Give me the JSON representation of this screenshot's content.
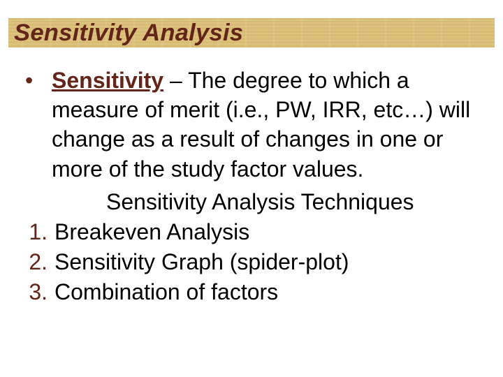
{
  "slide": {
    "title": "Sensitivity Analysis",
    "title_style": {
      "bar_background": "#d8bc74",
      "bar_texture_line_color": "#e8d6a2",
      "text_color": "#632419",
      "font_size_pt": 26
    },
    "definition": {
      "bullet_symbol": "•",
      "bullet_color": "#632419",
      "term": "Sensitivity",
      "term_color": "#632419",
      "text_color": "#000000",
      "font_size_pt": 24,
      "line_height": 1.32,
      "text_after_term": " – The degree to which a measure of merit (i.e., PW, IRR, etc…) will change as a result of changes in one or more of the study factor values."
    },
    "subheading": {
      "text": "Sensitivity Analysis Techniques",
      "font_size_pt": 24,
      "text_color": "#000000"
    },
    "numbered_list": {
      "font_size_pt": 24,
      "number_color": "#632419",
      "text_color": "#000000",
      "items": [
        {
          "n": "1.",
          "text": "Breakeven Analysis"
        },
        {
          "n": "2.",
          "text": "Sensitivity Graph (spider-plot)"
        },
        {
          "n": "3.",
          "text": "Combination of factors"
        }
      ]
    },
    "background_color": "#ffffff"
  }
}
